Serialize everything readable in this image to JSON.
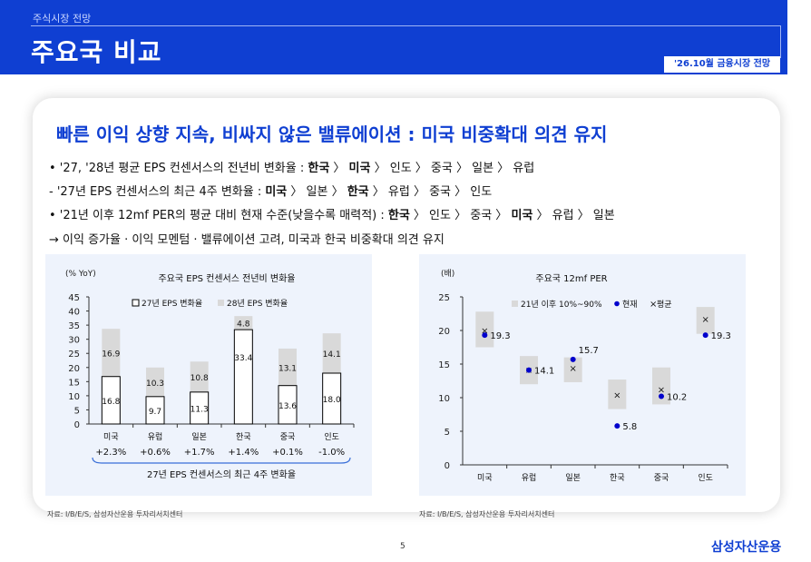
{
  "header": {
    "crumb": "주식시장 전망",
    "title": "주요국 비교",
    "badge": "'26.10월 금융시장 전망"
  },
  "headline": "빠른 이익 상향 지속, 비싸지 않은 밸류에이션 : 미국 비중확대 의견 유지",
  "bullets": [
    {
      "runs": [
        {
          "t": "• '27, '28년 평균 EPS 컨센서스의 전년비 변화율 : ",
          "b": false
        },
        {
          "t": "한국",
          "b": true
        },
        {
          "t": " 〉 ",
          "b": false
        },
        {
          "t": "미국",
          "b": true
        },
        {
          "t": " 〉 인도 〉 중국 〉 일본 〉 유럽",
          "b": false
        }
      ]
    },
    {
      "runs": [
        {
          "t": " - '27년 EPS 컨센서스의 최근 4주 변화율 : ",
          "b": false
        },
        {
          "t": "미국",
          "b": true
        },
        {
          "t": " 〉 일본 〉 ",
          "b": false
        },
        {
          "t": "한국",
          "b": true
        },
        {
          "t": " 〉 유럽 〉 중국 〉 인도",
          "b": false
        }
      ]
    },
    {
      "runs": [
        {
          "t": "• '21년 이후 12mf PER의 평균 대비 현재 수준(낮을수록 매력적) : ",
          "b": false
        },
        {
          "t": "한국",
          "b": true
        },
        {
          "t": " 〉 인도 〉 중국 〉 ",
          "b": false
        },
        {
          "t": "미국",
          "b": true
        },
        {
          "t": " 〉 유럽 〉 일본",
          "b": false
        }
      ]
    },
    {
      "runs": [
        {
          "t": " → 이익 증가율 · 이익 모멘텀 · 밸류에이션 고려, 미국과 한국 비중확대 의견 유지",
          "b": false
        }
      ]
    }
  ],
  "chart_data": [
    {
      "type": "bar",
      "title": "주요국 EPS 컨센서스 전년비 변화율",
      "unit_label": "(% YoY)",
      "categories": [
        "미국",
        "유럽",
        "일본",
        "한국",
        "중국",
        "인도"
      ],
      "series": [
        {
          "name": "27년 EPS 변화율",
          "values": [
            16.8,
            9.7,
            11.3,
            33.4,
            13.6,
            18.0
          ],
          "color": "#ffffff",
          "stroke": "#000000"
        },
        {
          "name": "28년 EPS 변화율",
          "values": [
            16.9,
            10.3,
            10.8,
            4.8,
            13.1,
            14.1
          ],
          "color": "#d9d9d9"
        }
      ],
      "stacked": true,
      "ylim": [
        0,
        45
      ],
      "yticks": [
        "0",
        "5",
        "10",
        "15",
        "20",
        "25",
        "30",
        "35",
        "40",
        "45"
      ],
      "four_week_change": [
        "+2.3%",
        "+0.6%",
        "+1.7%",
        "+1.4%",
        "+0.1%",
        "-1.0%"
      ],
      "bracket_label": "27년 EPS 컨센서스의 최근 4주 변화율",
      "legend_position": "top",
      "grid": false
    },
    {
      "type": "scatter",
      "title": "주요국 12mf PER",
      "unit_label": "(배)",
      "categories": [
        "미국",
        "유럽",
        "일본",
        "한국",
        "중국",
        "인도"
      ],
      "range_series": {
        "name": "21년 이후 10%~90%",
        "low": [
          17.5,
          12.0,
          12.3,
          8.3,
          9.0,
          19.5
        ],
        "high": [
          22.8,
          16.2,
          16.0,
          12.7,
          14.5,
          23.5
        ],
        "color": "#d9d9d9"
      },
      "current": {
        "name": "현재",
        "values": [
          19.3,
          14.1,
          15.7,
          5.8,
          10.2,
          19.3
        ],
        "labels": [
          "19.3",
          "14.1",
          "15.7",
          "5.8",
          "10.2",
          "19.3"
        ],
        "color": "#0000cc"
      },
      "average": {
        "name": "평균",
        "values": [
          20.0,
          14.1,
          14.4,
          10.4,
          11.2,
          21.7
        ],
        "marker": "×"
      },
      "ylim": [
        0,
        25
      ],
      "yticks": [
        "0",
        "5",
        "10",
        "15",
        "20",
        "25"
      ],
      "legend_position": "top",
      "grid": false
    }
  ],
  "sources": [
    "자료: I/B/E/S, 삼성자산운용 투자리서치센터",
    "자료: I/B/E/S, 삼성자산운용 투자리서치센터"
  ],
  "page_number": "5",
  "logo_text": "삼성자산운용"
}
